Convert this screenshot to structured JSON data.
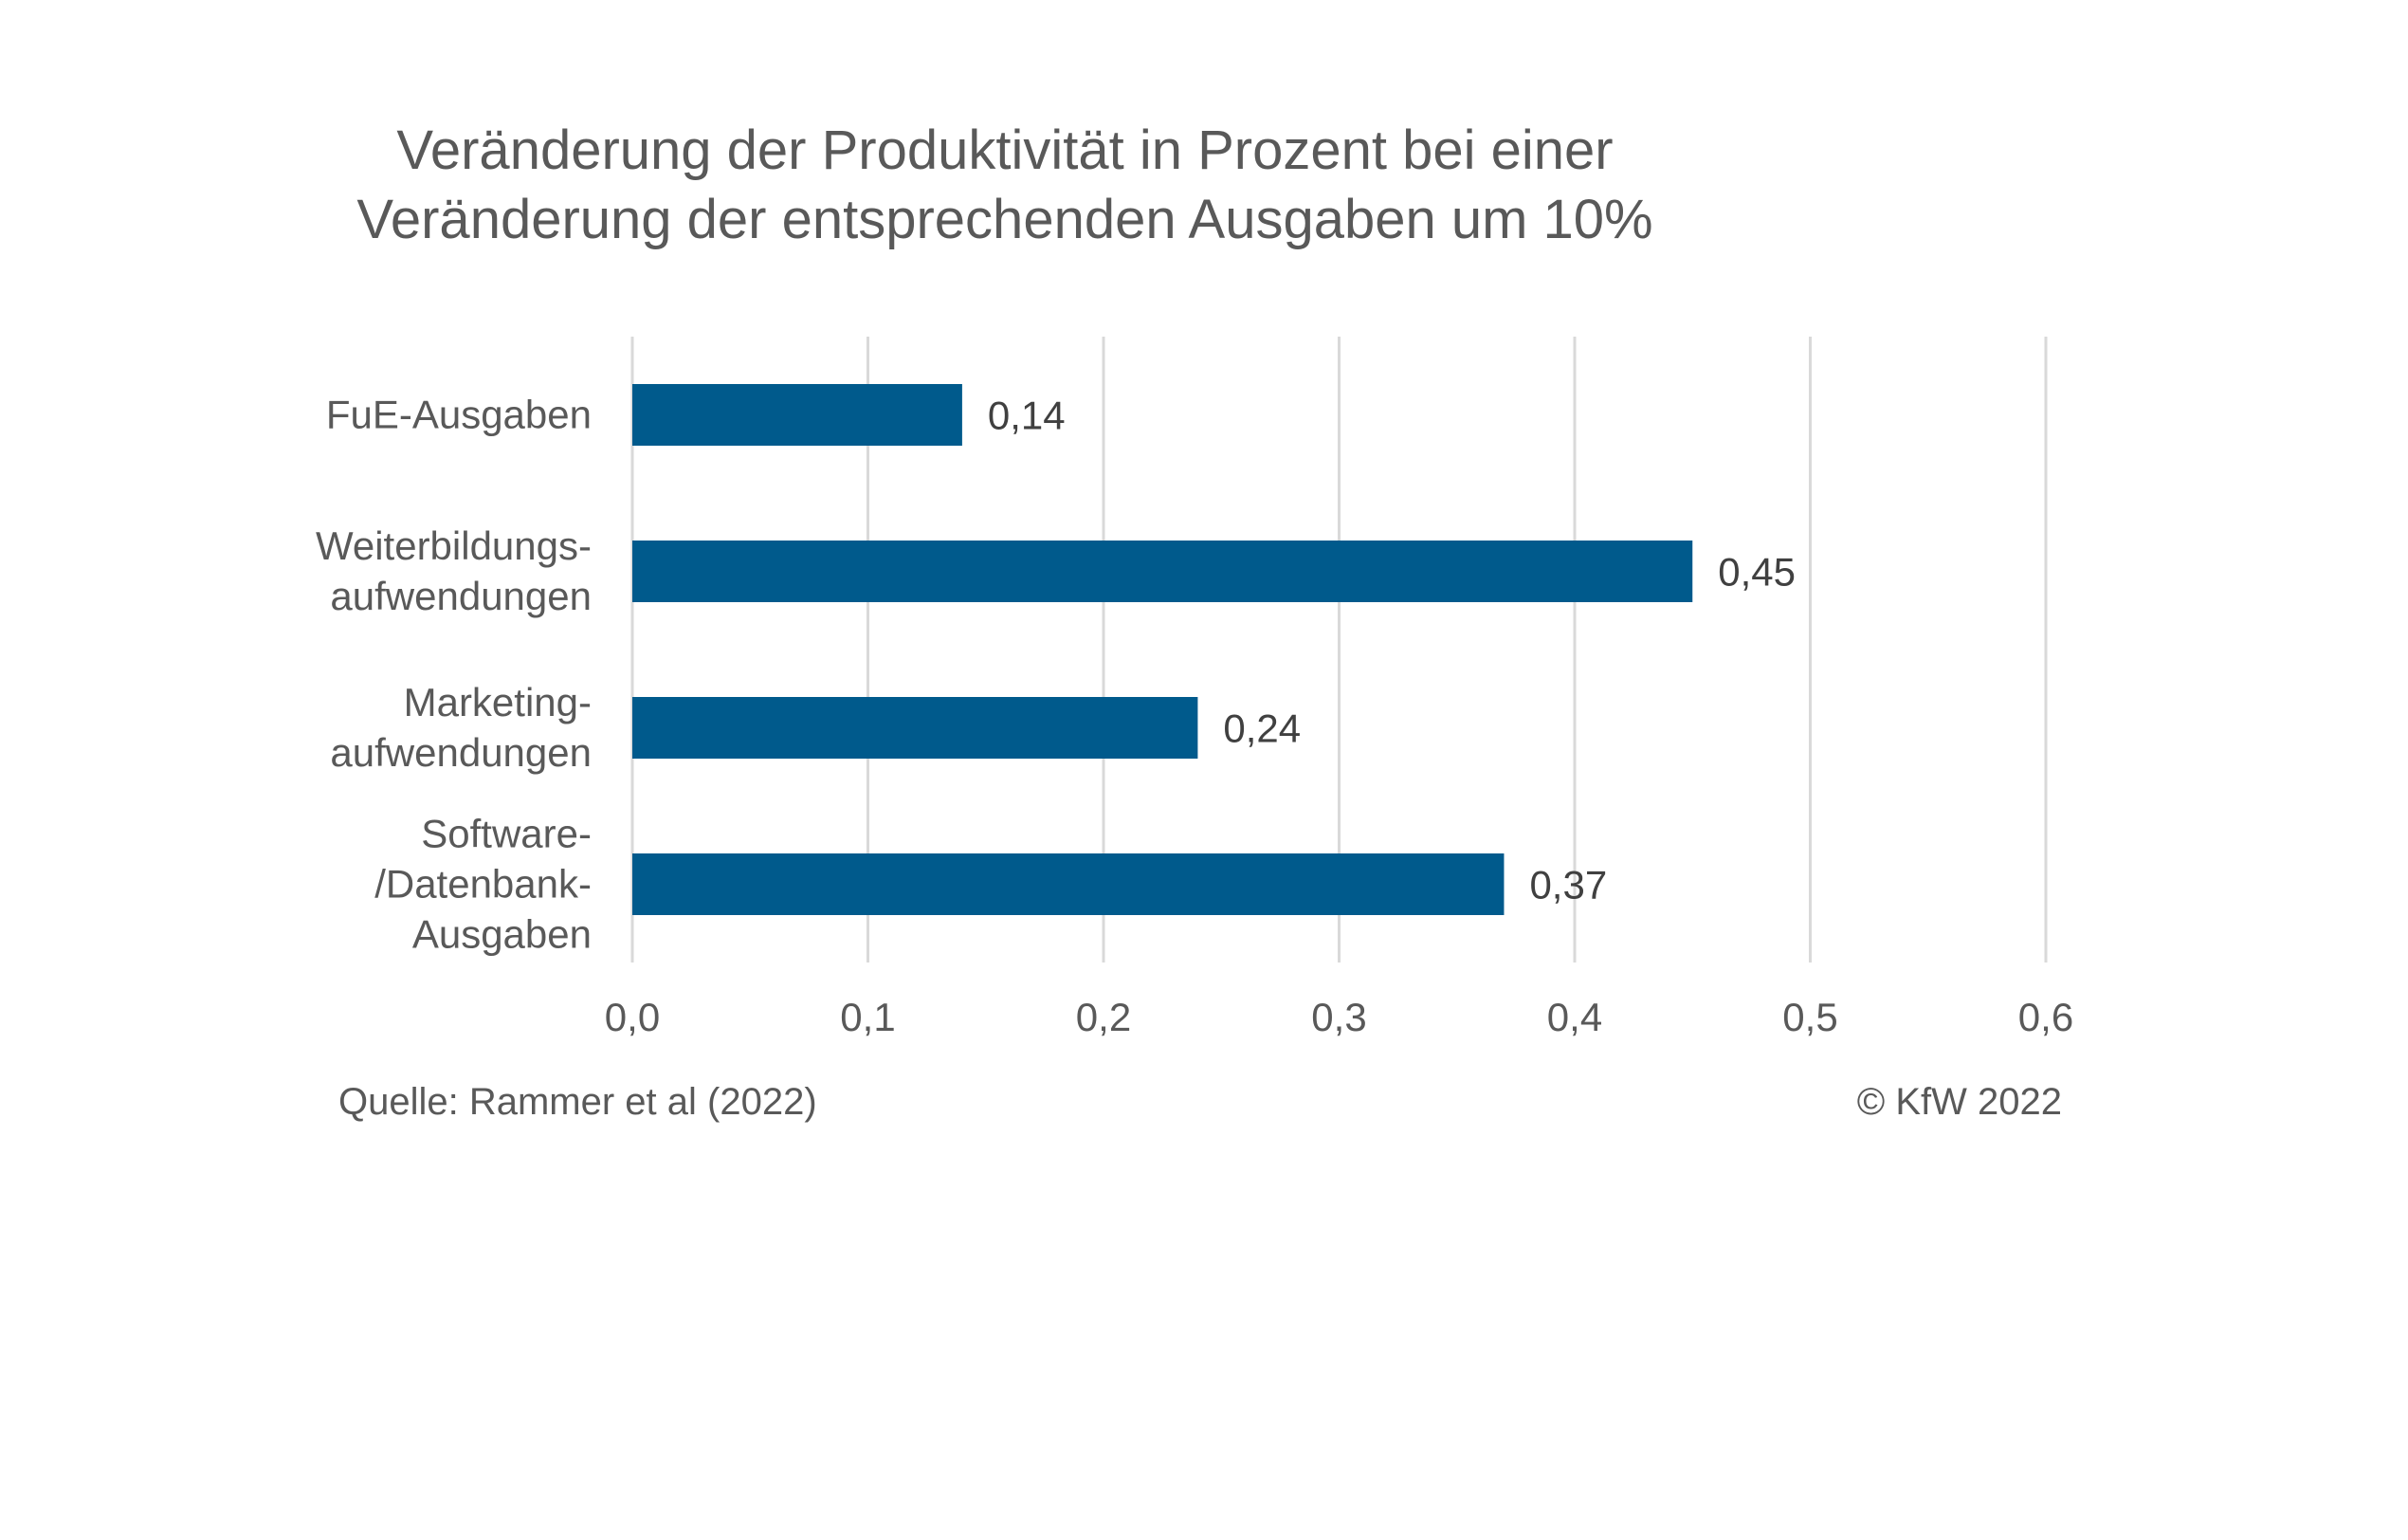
{
  "chart_data": {
    "type": "bar",
    "orientation": "horizontal",
    "title_lines": [
      "Veränderung der Produktivität in Prozent bei einer",
      "Veränderung der entsprechenden Ausgaben um 10%"
    ],
    "categories": [
      [
        "FuE-Ausgaben"
      ],
      [
        "Weiterbildungs-",
        "aufwendungen"
      ],
      [
        "Marketing-",
        "aufwendungen"
      ],
      [
        "Software-",
        "/Datenbank-",
        "Ausgaben"
      ]
    ],
    "values": [
      0.14,
      0.45,
      0.24,
      0.37
    ],
    "value_labels": [
      "0,14",
      "0,45",
      "0,24",
      "0,37"
    ],
    "xlim": [
      0,
      0.6
    ],
    "xticks": [
      0,
      0.1,
      0.2,
      0.3,
      0.4,
      0.5,
      0.6
    ],
    "xtick_labels": [
      "0,0",
      "0,1",
      "0,2",
      "0,3",
      "0,4",
      "0,5",
      "0,6"
    ],
    "grid": "vertical",
    "bar_color": "#005A8C",
    "grid_color": "#D9D9D9"
  },
  "footer": {
    "source": "Quelle: Rammer et al (2022)",
    "copyright": "© KfW 2022"
  }
}
